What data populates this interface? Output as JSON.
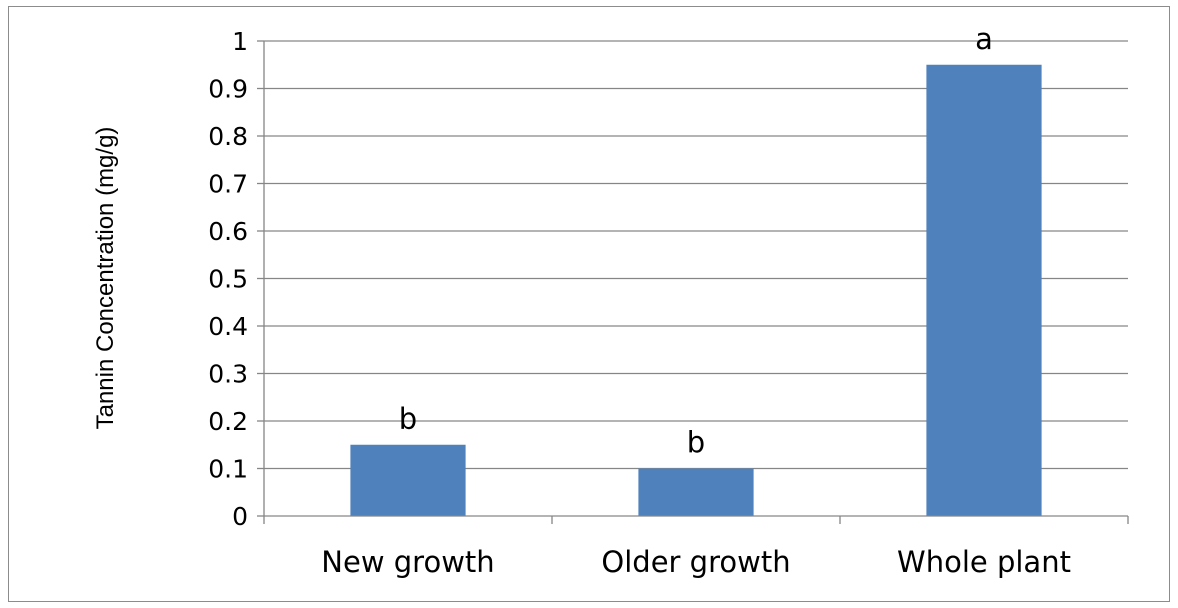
{
  "chart_data": {
    "type": "bar",
    "categories": [
      "New growth",
      "Older growth",
      "Whole plant"
    ],
    "values": [
      0.15,
      0.1,
      0.95
    ],
    "bar_labels": [
      "b",
      "b",
      "a"
    ],
    "title": "",
    "xlabel": "",
    "ylabel": "Tannin Concentration (mg/g)",
    "ylim": [
      0,
      1
    ],
    "yticks": [
      "0",
      "0.1",
      "0.2",
      "0.3",
      "0.4",
      "0.5",
      "0.6",
      "0.7",
      "0.8",
      "0.9",
      "1"
    ],
    "grid": true,
    "legend": "none",
    "bar_color": "#4f81bd",
    "grid_color": "#868686"
  }
}
